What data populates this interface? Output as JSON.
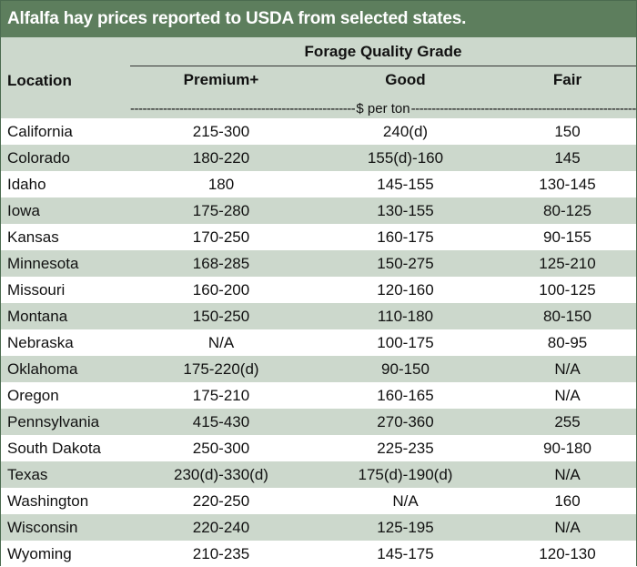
{
  "title": "Alfalfa hay prices reported to USDA from selected states.",
  "group_header": "Forage Quality Grade",
  "columns": {
    "location": "Location",
    "premium": "Premium+",
    "good": "Good",
    "fair": "Fair"
  },
  "units": "$ per ton",
  "colors": {
    "title_bg": "#5d7e5d",
    "band": "#ccd8cc"
  },
  "rows": [
    {
      "location": "California",
      "premium": "215-300",
      "good": "240(d)",
      "fair": "150"
    },
    {
      "location": "Colorado",
      "premium": "180-220",
      "good": "155(d)-160",
      "fair": "145"
    },
    {
      "location": "Idaho",
      "premium": "180",
      "good": "145-155",
      "fair": "130-145"
    },
    {
      "location": "Iowa",
      "premium": "175-280",
      "good": "130-155",
      "fair": "80-125"
    },
    {
      "location": "Kansas",
      "premium": "170-250",
      "good": "160-175",
      "fair": "90-155"
    },
    {
      "location": "Minnesota",
      "premium": "168-285",
      "good": "150-275",
      "fair": "125-210"
    },
    {
      "location": "Missouri",
      "premium": "160-200",
      "good": "120-160",
      "fair": "100-125"
    },
    {
      "location": "Montana",
      "premium": "150-250",
      "good": "110-180",
      "fair": "80-150"
    },
    {
      "location": "Nebraska",
      "premium": "N/A",
      "good": "100-175",
      "fair": "80-95"
    },
    {
      "location": "Oklahoma",
      "premium": "175-220(d)",
      "good": "90-150",
      "fair": "N/A"
    },
    {
      "location": "Oregon",
      "premium": "175-210",
      "good": "160-165",
      "fair": "N/A"
    },
    {
      "location": "Pennsylvania",
      "premium": "415-430",
      "good": "270-360",
      "fair": "255"
    },
    {
      "location": "South Dakota",
      "premium": "250-300",
      "good": "225-235",
      "fair": "90-180"
    },
    {
      "location": "Texas",
      "premium": "230(d)-330(d)",
      "good": "175(d)-190(d)",
      "fair": "N/A"
    },
    {
      "location": "Washington",
      "premium": "220-250",
      "good": "N/A",
      "fair": "160"
    },
    {
      "location": "Wisconsin",
      "premium": "220-240",
      "good": "125-195",
      "fair": "N/A"
    },
    {
      "location": "Wyoming",
      "premium": "210-235",
      "good": "145-175",
      "fair": "120-130"
    }
  ]
}
